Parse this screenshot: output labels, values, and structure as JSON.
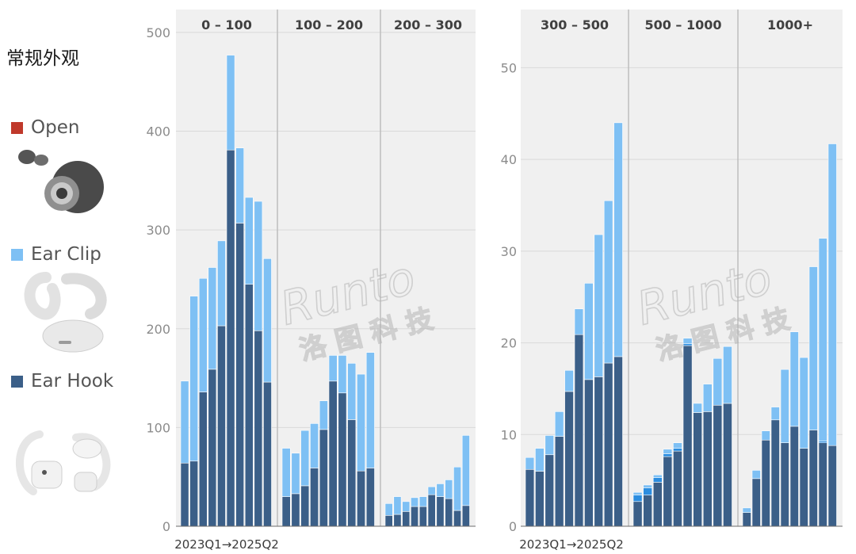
{
  "colors": {
    "open": "#c0392b",
    "ear_clip": "#7ec0f4",
    "ear_hook": "#3b5f88",
    "blue_extra": "#2b8de0",
    "panel_bg": "#f0f0f0",
    "grid": "#d9d9d9",
    "divider": "#bdbdbd",
    "tick_text": "#8c8c8c",
    "header_text": "#404040"
  },
  "legend": {
    "title": "常规外观",
    "items": [
      {
        "key": "open",
        "label": "Open",
        "icon": "open-earbuds-icon"
      },
      {
        "key": "ear_clip",
        "label": "Ear Clip",
        "icon": "ear-clip-earbuds-icon"
      },
      {
        "key": "ear_hook",
        "label": "Ear Hook",
        "icon": "ear-hook-earbuds-icon"
      }
    ]
  },
  "watermark": {
    "brand": "Runto",
    "chinese": "洛图科技"
  },
  "chart_data": [
    {
      "type": "bar",
      "stacked": true,
      "x_range_label": "2023Q1→2025Q2",
      "ylim": [
        0,
        520
      ],
      "yticks": [
        0,
        100,
        200,
        300,
        400,
        500
      ],
      "grid": true,
      "facets": [
        {
          "label": "0 - 100",
          "ear_hook": [
            64,
            66,
            136,
            159,
            203,
            381,
            307,
            245,
            198,
            146
          ],
          "ear_clip": [
            83,
            167,
            115,
            103,
            86,
            96,
            76,
            88,
            131,
            125
          ],
          "open": [
            0,
            0,
            0,
            0,
            0,
            0,
            0,
            0,
            0,
            0
          ]
        },
        {
          "label": "100 - 200",
          "ear_hook": [
            30,
            33,
            41,
            59,
            98,
            147,
            135,
            108,
            56,
            59
          ],
          "ear_clip": [
            49,
            41,
            56,
            45,
            29,
            26,
            38,
            57,
            98,
            117
          ],
          "open": [
            0,
            0,
            0,
            0,
            0,
            0,
            0,
            0,
            0,
            0
          ]
        },
        {
          "label": "200 - 300",
          "ear_hook": [
            11,
            12,
            15,
            20,
            20,
            32,
            30,
            28,
            16,
            21
          ],
          "ear_clip": [
            12,
            18,
            10,
            9,
            10,
            8,
            13,
            19,
            44,
            71
          ],
          "open": [
            0,
            0,
            0,
            0,
            0,
            0,
            0,
            0,
            0,
            0
          ]
        }
      ]
    },
    {
      "type": "bar",
      "stacked": true,
      "x_range_label": "2023Q1→2025Q2",
      "ylim": [
        0,
        56
      ],
      "yticks": [
        0,
        10,
        20,
        30,
        40,
        50
      ],
      "grid": true,
      "facets": [
        {
          "label": "300 - 500",
          "ear_hook": [
            6.2,
            6.0,
            7.8,
            9.8,
            14.7,
            20.9,
            16.0,
            16.3,
            17.8,
            18.5
          ],
          "ear_clip": [
            1.3,
            2.5,
            2.1,
            2.7,
            2.3,
            2.8,
            10.5,
            15.5,
            17.7,
            25.5
          ],
          "open": [
            0,
            0,
            0,
            0,
            0,
            0,
            0,
            0,
            0,
            0
          ]
        },
        {
          "label": "500 - 1000",
          "ear_hook": [
            2.7,
            3.4,
            4.8,
            7.6,
            8.2,
            19.7,
            12.4,
            12.5,
            13.2,
            13.4
          ],
          "ear_clip": [
            0.3,
            0.3,
            0.3,
            0.5,
            0.6,
            0.6,
            1.0,
            3.0,
            5.1,
            6.2
          ],
          "open": [
            0.7,
            0.8,
            0.5,
            0.3,
            0.3,
            0.2,
            0,
            0,
            0,
            0
          ]
        },
        {
          "label": "1000+",
          "ear_hook": [
            1.5,
            5.2,
            9.4,
            11.6,
            9.1,
            10.9,
            8.5,
            10.5,
            9.1,
            8.8
          ],
          "ear_clip": [
            0.5,
            0.9,
            1.0,
            1.4,
            8.0,
            10.3,
            9.9,
            17.8,
            22.1,
            32.9
          ],
          "open": [
            0,
            0,
            0,
            0,
            0,
            0,
            0,
            0,
            0.2,
            0
          ]
        }
      ]
    }
  ]
}
